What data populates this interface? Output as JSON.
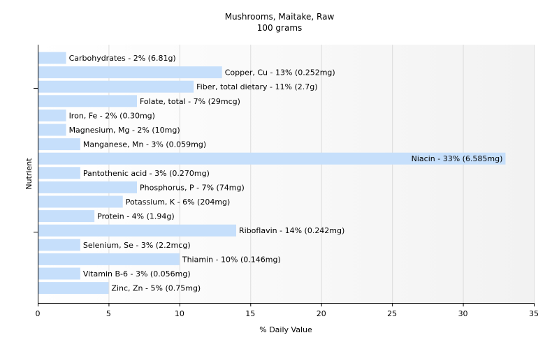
{
  "chart_data": {
    "type": "bar",
    "orientation": "horizontal",
    "title": "Mushrooms, Maitake, Raw",
    "subtitle": "100 grams",
    "xlabel": "% Daily Value",
    "ylabel": "Nutrient",
    "xlim": [
      0,
      35
    ],
    "xticks": [
      0,
      5,
      10,
      15,
      20,
      25,
      30,
      35
    ],
    "grid": true,
    "bar_color": "#c6dffb",
    "categories": [
      "Carbohydrates",
      "Copper, Cu",
      "Fiber, total dietary",
      "Folate, total",
      "Iron, Fe",
      "Magnesium, Mg",
      "Manganese, Mn",
      "Niacin",
      "Pantothenic acid",
      "Phosphorus, P",
      "Potassium, K",
      "Protein",
      "Riboflavin",
      "Selenium, Se",
      "Thiamin",
      "Vitamin B-6",
      "Zinc, Zn"
    ],
    "values": [
      2,
      13,
      11,
      7,
      2,
      2,
      3,
      33,
      3,
      7,
      6,
      4,
      14,
      3,
      10,
      3,
      5
    ],
    "labels": [
      "Carbohydrates - 2% (6.81g)",
      "Copper, Cu - 13% (0.252mg)",
      "Fiber, total dietary - 11% (2.7g)",
      "Folate, total - 7% (29mcg)",
      "Iron, Fe - 2% (0.30mg)",
      "Magnesium, Mg - 2% (10mg)",
      "Manganese, Mn - 3% (0.059mg)",
      "Niacin - 33% (6.585mg)",
      "Pantothenic acid - 3% (0.270mg)",
      "Phosphorus, P - 7% (74mg)",
      "Potassium, K - 6% (204mg)",
      "Protein - 4% (1.94g)",
      "Riboflavin - 14% (0.242mg)",
      "Selenium, Se - 3% (2.2mcg)",
      "Thiamin - 10% (0.146mg)",
      "Vitamin B-6 - 3% (0.056mg)",
      "Zinc, Zn - 5% (0.75mg)"
    ]
  }
}
